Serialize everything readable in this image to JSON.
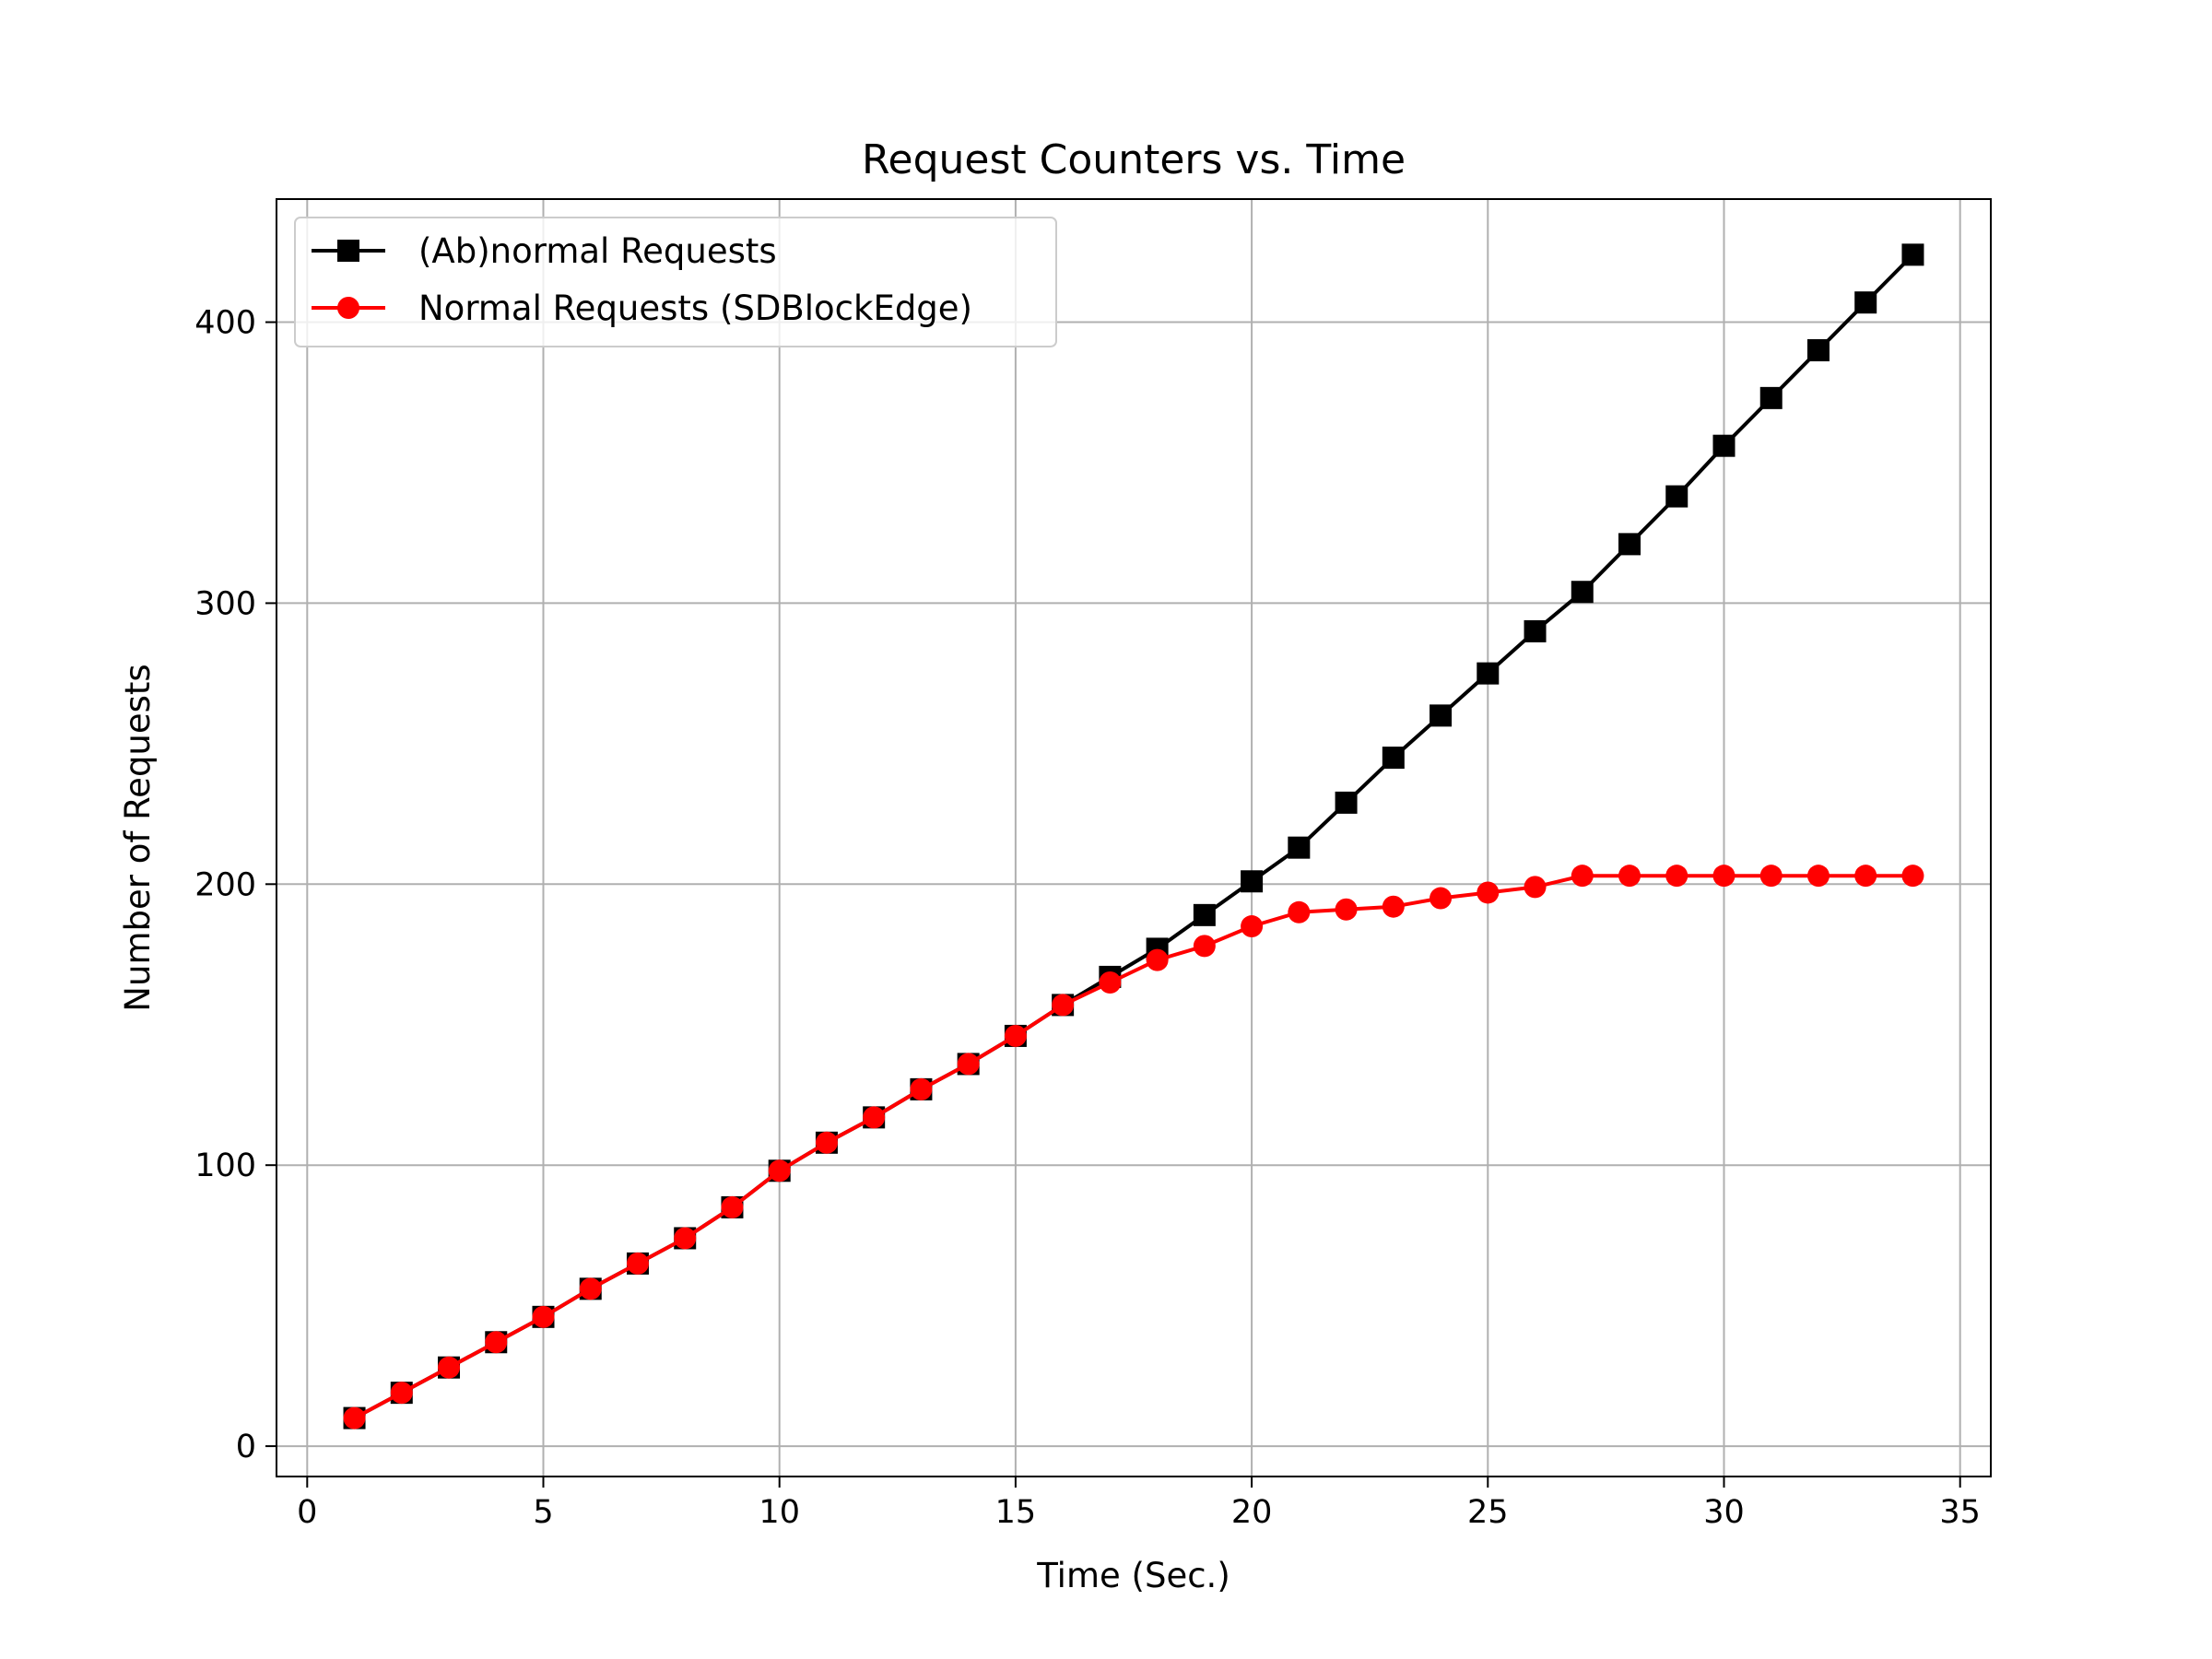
{
  "chart_data": {
    "type": "line",
    "title": "Request Counters vs. Time",
    "xlabel": "Time (Sec.)",
    "ylabel": "Number of Requests",
    "xlim": [
      -0.65,
      35.65
    ],
    "ylim": [
      -10.8,
      443.8
    ],
    "xticks": [
      0,
      5,
      10,
      15,
      20,
      25,
      30,
      35
    ],
    "yticks": [
      0,
      100,
      200,
      300,
      400
    ],
    "grid": true,
    "legend_position": "top-left",
    "x": [
      1,
      2,
      3,
      4,
      5,
      6,
      7,
      8,
      9,
      10,
      11,
      12,
      13,
      14,
      15,
      16,
      17,
      18,
      19,
      20,
      21,
      22,
      23,
      24,
      25,
      26,
      27,
      28,
      29,
      30,
      31,
      32,
      33,
      34
    ],
    "series": [
      {
        "name": "(Ab)normal Requests",
        "color": "#000000",
        "marker": "square",
        "values": [
          10,
          19,
          28,
          37,
          46,
          56,
          65,
          74,
          85,
          98,
          108,
          117,
          127,
          136,
          146,
          157,
          167,
          177,
          189,
          201,
          213,
          229,
          245,
          260,
          275,
          290,
          304,
          321,
          338,
          356,
          373,
          390,
          407,
          424
        ]
      },
      {
        "name": "Normal Requests (SDBlockEdge)",
        "color": "#ff0000",
        "marker": "circle",
        "values": [
          10,
          19,
          28,
          37,
          46,
          56,
          65,
          74,
          85,
          98,
          108,
          117,
          127,
          136,
          146,
          157,
          165,
          173,
          178,
          185,
          190,
          191,
          192,
          195,
          197,
          199,
          203,
          203,
          203,
          203,
          203,
          203,
          203,
          203
        ]
      }
    ]
  }
}
